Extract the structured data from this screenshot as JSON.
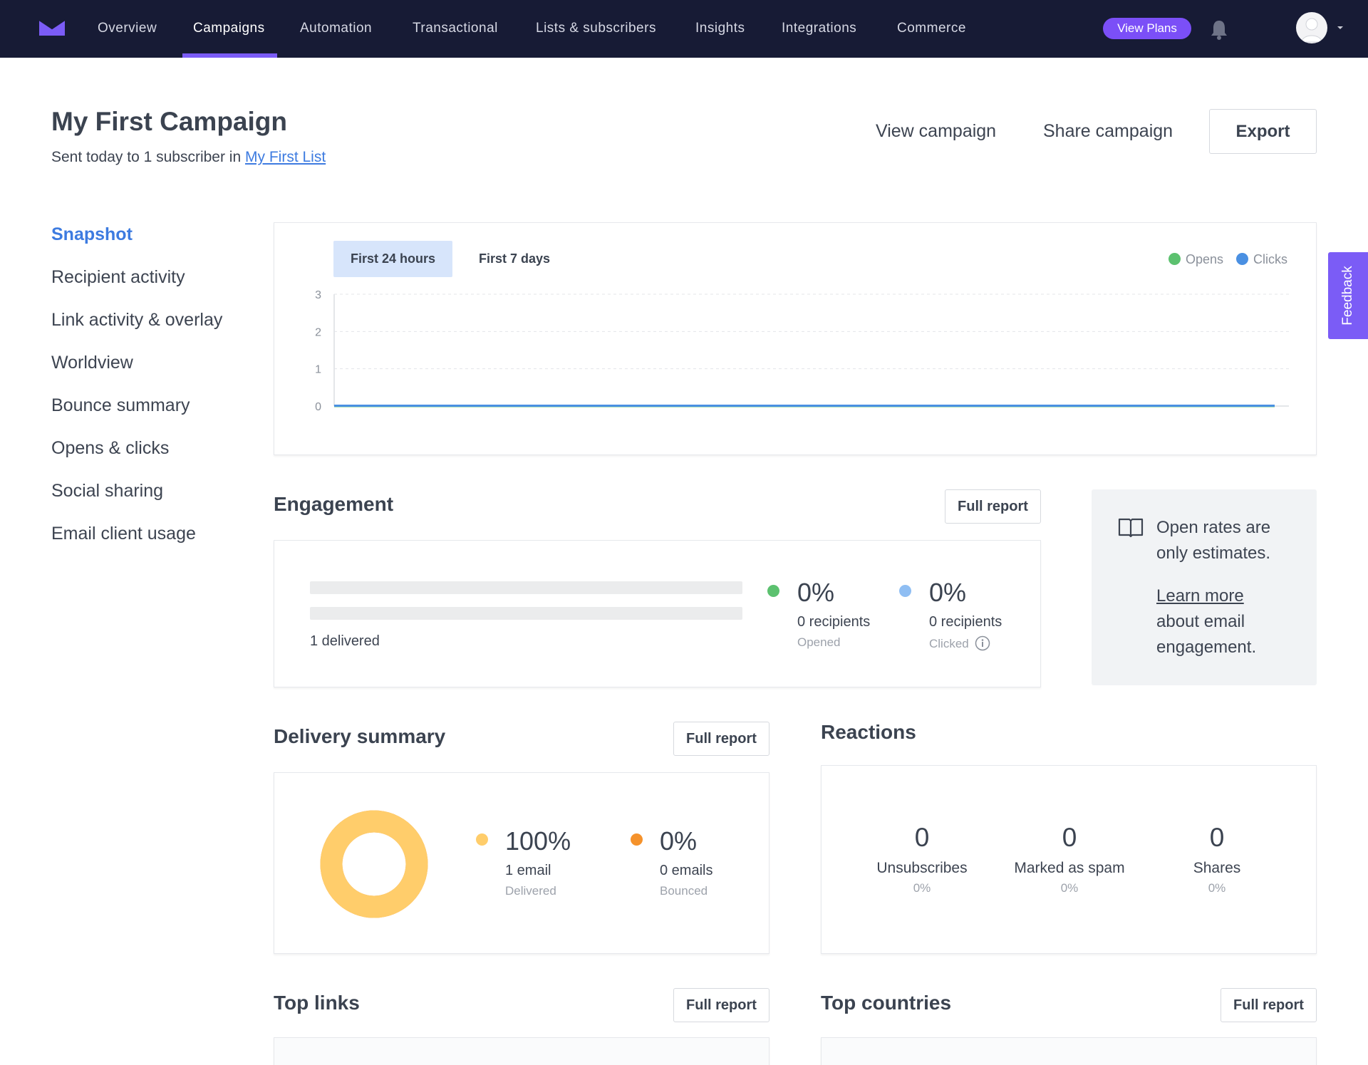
{
  "nav": {
    "items": [
      "Overview",
      "Campaigns",
      "Automation",
      "Transactional",
      "Lists & subscribers",
      "Insights",
      "Integrations",
      "Commerce"
    ],
    "active": "Campaigns",
    "view_plans": "View Plans"
  },
  "header": {
    "title": "My First Campaign",
    "subtitle_prefix": "Sent today to 1 subscriber in ",
    "list_link": "My First List",
    "view_campaign": "View campaign",
    "share_campaign": "Share campaign",
    "export": "Export"
  },
  "sidebar": {
    "items": [
      "Snapshot",
      "Recipient activity",
      "Link activity & overlay",
      "Worldview",
      "Bounce summary",
      "Opens & clicks",
      "Social sharing",
      "Email client usage"
    ],
    "active": "Snapshot"
  },
  "chart_data": {
    "type": "line",
    "tabs": [
      "First 24 hours",
      "First 7 days"
    ],
    "active_tab": "First 24 hours",
    "legend": [
      "Opens",
      "Clicks"
    ],
    "y_ticks": [
      "3",
      "2",
      "1",
      "0"
    ],
    "ylim": [
      0,
      3
    ],
    "series": [
      {
        "name": "Opens",
        "color": "#5cc16f",
        "values": [
          0,
          0
        ]
      },
      {
        "name": "Clicks",
        "color": "#4a90e2",
        "values": [
          0,
          0
        ]
      }
    ]
  },
  "engagement": {
    "title": "Engagement",
    "full_report": "Full report",
    "delivered": "1 delivered",
    "opened_pct": "0%",
    "opened_count": "0 recipients",
    "opened_label": "Opened",
    "clicked_pct": "0%",
    "clicked_count": "0 recipients",
    "clicked_label": "Clicked",
    "info_line1": "Open rates are only estimates.",
    "info_link": "Learn more",
    "info_line2": "about email engagement."
  },
  "delivery": {
    "title": "Delivery summary",
    "full_report": "Full report",
    "delivered_pct": "100%",
    "delivered_count": "1 email",
    "delivered_label": "Delivered",
    "bounced_pct": "0%",
    "bounced_count": "0 emails",
    "bounced_label": "Bounced",
    "donut_delivered_fraction": 1.0
  },
  "reactions": {
    "title": "Reactions",
    "items": [
      {
        "value": "0",
        "label": "Unsubscribes",
        "pct": "0%"
      },
      {
        "value": "0",
        "label": "Marked as spam",
        "pct": "0%"
      },
      {
        "value": "0",
        "label": "Shares",
        "pct": "0%"
      }
    ]
  },
  "top_links": {
    "title": "Top links",
    "full_report": "Full report"
  },
  "top_countries": {
    "title": "Top countries",
    "full_report": "Full report"
  },
  "feedback": "Feedback",
  "colors": {
    "nav_bg": "#171b35",
    "accent": "#7b5cf6",
    "link": "#3d7be0",
    "opens": "#5cc16f",
    "clicks": "#4a90e2",
    "delivered": "#ffcd6b",
    "bounced": "#f5922b"
  }
}
